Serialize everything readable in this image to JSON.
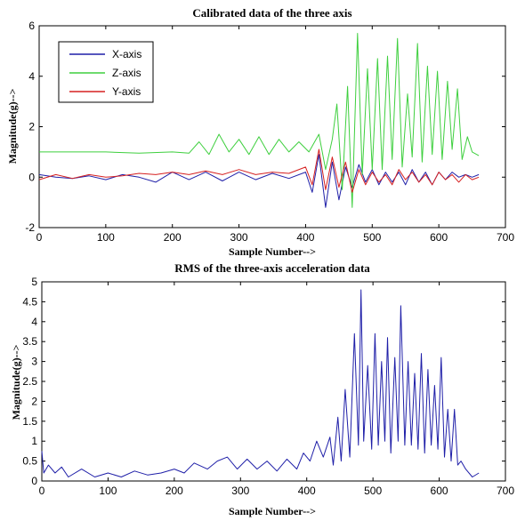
{
  "chart_data": [
    {
      "type": "line",
      "title": "Calibrated data of the three axis",
      "xlabel": "Sample Number-->",
      "ylabel": "Magnitude(g)-->",
      "xlim": [
        0,
        700
      ],
      "ylim": [
        -2,
        6
      ],
      "xticks": [
        "0",
        "100",
        "200",
        "300",
        "400",
        "500",
        "600",
        "700"
      ],
      "yticks": [
        "-2",
        "0",
        "2",
        "4",
        "6"
      ],
      "grid": false,
      "legend_position": "top-left",
      "series": [
        {
          "name": "X-axis",
          "color": "#1f1fa8",
          "x": [
            0,
            25,
            50,
            75,
            100,
            125,
            150,
            175,
            200,
            225,
            250,
            275,
            300,
            325,
            350,
            375,
            400,
            410,
            420,
            430,
            440,
            450,
            460,
            470,
            480,
            490,
            500,
            510,
            520,
            530,
            540,
            550,
            560,
            570,
            580,
            590,
            600,
            610,
            620,
            630,
            640,
            650,
            660
          ],
          "values": [
            0.1,
            0.0,
            -0.05,
            0.05,
            -0.1,
            0.1,
            0.0,
            -0.2,
            0.2,
            -0.1,
            0.2,
            -0.15,
            0.2,
            -0.1,
            0.15,
            -0.05,
            0.2,
            -0.6,
            0.9,
            -1.2,
            0.6,
            -0.9,
            0.4,
            -0.4,
            0.5,
            -0.2,
            0.3,
            -0.3,
            0.2,
            -0.2,
            0.2,
            -0.3,
            0.3,
            -0.2,
            0.2,
            -0.3,
            0.2,
            -0.1,
            0.2,
            0.0,
            0.1,
            0.0,
            0.1
          ]
        },
        {
          "name": "Z-axis",
          "color": "#3ecf3e",
          "x": [
            0,
            50,
            100,
            150,
            200,
            225,
            240,
            255,
            270,
            285,
            300,
            315,
            330,
            345,
            360,
            375,
            390,
            405,
            420,
            430,
            440,
            447,
            455,
            463,
            470,
            478,
            485,
            493,
            500,
            508,
            515,
            523,
            530,
            538,
            545,
            553,
            560,
            568,
            575,
            583,
            590,
            598,
            605,
            613,
            620,
            628,
            635,
            643,
            650,
            660
          ],
          "values": [
            1.0,
            1.0,
            1.0,
            0.95,
            1.0,
            0.95,
            1.4,
            0.9,
            1.7,
            1.0,
            1.5,
            0.9,
            1.6,
            0.9,
            1.5,
            1.0,
            1.4,
            1.0,
            1.7,
            0.3,
            1.5,
            2.9,
            -0.5,
            3.6,
            -1.2,
            5.7,
            0.1,
            4.3,
            0.3,
            4.7,
            0.3,
            4.8,
            0.7,
            5.5,
            0.4,
            3.3,
            0.8,
            5.3,
            0.6,
            4.4,
            0.9,
            4.2,
            0.7,
            3.8,
            1.1,
            3.5,
            0.7,
            1.6,
            1.0,
            0.85
          ]
        },
        {
          "name": "Y-axis",
          "color": "#d62020",
          "x": [
            0,
            25,
            50,
            75,
            100,
            125,
            150,
            175,
            200,
            225,
            250,
            275,
            300,
            325,
            350,
            375,
            400,
            410,
            420,
            430,
            440,
            450,
            460,
            470,
            480,
            490,
            500,
            510,
            520,
            530,
            540,
            550,
            560,
            570,
            580,
            590,
            600,
            610,
            620,
            630,
            640,
            650,
            660
          ],
          "values": [
            -0.1,
            0.1,
            -0.05,
            0.1,
            0.0,
            0.05,
            0.15,
            0.1,
            0.2,
            0.1,
            0.25,
            0.1,
            0.3,
            0.1,
            0.2,
            0.15,
            0.4,
            -0.3,
            1.1,
            -0.5,
            0.8,
            -0.4,
            0.6,
            -0.6,
            0.3,
            -0.3,
            0.2,
            -0.2,
            0.1,
            -0.3,
            0.3,
            -0.1,
            0.2,
            -0.2,
            0.1,
            -0.3,
            0.2,
            -0.1,
            0.1,
            -0.2,
            0.1,
            -0.1,
            0.0
          ]
        }
      ]
    },
    {
      "type": "line",
      "title": "RMS of the three-axis acceleration data",
      "xlabel": "Sample Number-->",
      "ylabel": "Magnitude(g)-->",
      "xlim": [
        0,
        700
      ],
      "ylim": [
        0,
        5
      ],
      "xticks": [
        "0",
        "100",
        "200",
        "300",
        "400",
        "500",
        "600",
        "700"
      ],
      "yticks": [
        "0",
        "0.5",
        "1",
        "1.5",
        "2",
        "2.5",
        "3",
        "3.5",
        "4",
        "4.5",
        "5"
      ],
      "grid": false,
      "series": [
        {
          "color": "#1f1fa8",
          "x": [
            0,
            3,
            10,
            20,
            30,
            40,
            60,
            80,
            100,
            120,
            140,
            160,
            180,
            200,
            215,
            230,
            250,
            265,
            280,
            295,
            310,
            325,
            340,
            355,
            370,
            385,
            395,
            405,
            415,
            425,
            435,
            440,
            447,
            452,
            458,
            465,
            472,
            478,
            482,
            486,
            492,
            498,
            503,
            508,
            513,
            518,
            522,
            527,
            533,
            538,
            542,
            548,
            553,
            558,
            563,
            568,
            573,
            578,
            583,
            588,
            593,
            598,
            603,
            608,
            613,
            618,
            623,
            628,
            633,
            640,
            650,
            660
          ],
          "values": [
            0.75,
            0.2,
            0.4,
            0.2,
            0.35,
            0.1,
            0.3,
            0.1,
            0.2,
            0.1,
            0.25,
            0.15,
            0.2,
            0.3,
            0.2,
            0.45,
            0.3,
            0.5,
            0.6,
            0.3,
            0.55,
            0.3,
            0.5,
            0.25,
            0.55,
            0.3,
            0.7,
            0.5,
            1.0,
            0.6,
            1.1,
            0.4,
            1.6,
            0.5,
            2.3,
            0.6,
            3.7,
            0.9,
            4.8,
            1.0,
            2.9,
            0.8,
            3.7,
            0.9,
            3.0,
            1.0,
            3.6,
            0.7,
            3.1,
            1.0,
            4.4,
            0.9,
            3.0,
            0.9,
            2.7,
            0.8,
            3.2,
            0.7,
            2.8,
            0.9,
            2.4,
            0.8,
            3.1,
            0.6,
            1.8,
            0.5,
            1.8,
            0.4,
            0.5,
            0.3,
            0.1,
            0.2
          ]
        }
      ]
    }
  ],
  "legend": {
    "items": [
      {
        "label": "X-axis",
        "color": "#1f1fa8"
      },
      {
        "label": "Z-axis",
        "color": "#3ecf3e"
      },
      {
        "label": "Y-axis",
        "color": "#d62020"
      }
    ]
  }
}
